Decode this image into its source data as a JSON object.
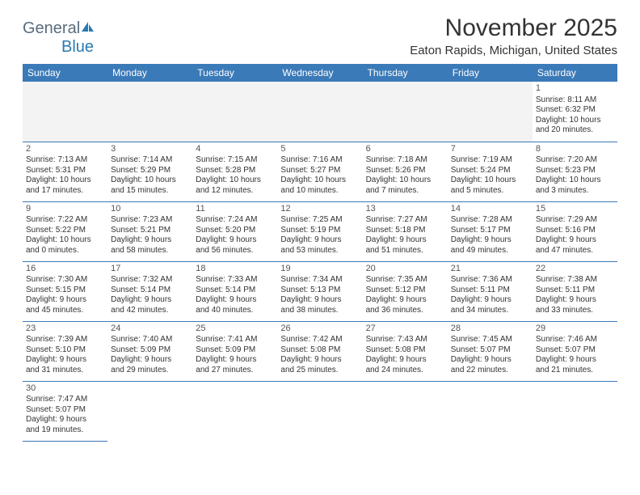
{
  "logo": {
    "general": "General",
    "blue": "Blue"
  },
  "title": "November 2025",
  "location": "Eaton Rapids, Michigan, United States",
  "colors": {
    "header_bg": "#3b7ab8",
    "header_text": "#ffffff",
    "border": "#3b7ab8",
    "empty_bg": "#f3f3f3",
    "text": "#333333",
    "logo_general": "#5a6c7d",
    "logo_blue": "#2a7ab0"
  },
  "day_names": [
    "Sunday",
    "Monday",
    "Tuesday",
    "Wednesday",
    "Thursday",
    "Friday",
    "Saturday"
  ],
  "weeks": [
    [
      {
        "empty": true
      },
      {
        "empty": true
      },
      {
        "empty": true
      },
      {
        "empty": true
      },
      {
        "empty": true
      },
      {
        "empty": true
      },
      {
        "n": "1",
        "sr": "Sunrise: 8:11 AM",
        "ss": "Sunset: 6:32 PM",
        "dl1": "Daylight: 10 hours",
        "dl2": "and 20 minutes."
      }
    ],
    [
      {
        "n": "2",
        "sr": "Sunrise: 7:13 AM",
        "ss": "Sunset: 5:31 PM",
        "dl1": "Daylight: 10 hours",
        "dl2": "and 17 minutes."
      },
      {
        "n": "3",
        "sr": "Sunrise: 7:14 AM",
        "ss": "Sunset: 5:29 PM",
        "dl1": "Daylight: 10 hours",
        "dl2": "and 15 minutes."
      },
      {
        "n": "4",
        "sr": "Sunrise: 7:15 AM",
        "ss": "Sunset: 5:28 PM",
        "dl1": "Daylight: 10 hours",
        "dl2": "and 12 minutes."
      },
      {
        "n": "5",
        "sr": "Sunrise: 7:16 AM",
        "ss": "Sunset: 5:27 PM",
        "dl1": "Daylight: 10 hours",
        "dl2": "and 10 minutes."
      },
      {
        "n": "6",
        "sr": "Sunrise: 7:18 AM",
        "ss": "Sunset: 5:26 PM",
        "dl1": "Daylight: 10 hours",
        "dl2": "and 7 minutes."
      },
      {
        "n": "7",
        "sr": "Sunrise: 7:19 AM",
        "ss": "Sunset: 5:24 PM",
        "dl1": "Daylight: 10 hours",
        "dl2": "and 5 minutes."
      },
      {
        "n": "8",
        "sr": "Sunrise: 7:20 AM",
        "ss": "Sunset: 5:23 PM",
        "dl1": "Daylight: 10 hours",
        "dl2": "and 3 minutes."
      }
    ],
    [
      {
        "n": "9",
        "sr": "Sunrise: 7:22 AM",
        "ss": "Sunset: 5:22 PM",
        "dl1": "Daylight: 10 hours",
        "dl2": "and 0 minutes."
      },
      {
        "n": "10",
        "sr": "Sunrise: 7:23 AM",
        "ss": "Sunset: 5:21 PM",
        "dl1": "Daylight: 9 hours",
        "dl2": "and 58 minutes."
      },
      {
        "n": "11",
        "sr": "Sunrise: 7:24 AM",
        "ss": "Sunset: 5:20 PM",
        "dl1": "Daylight: 9 hours",
        "dl2": "and 56 minutes."
      },
      {
        "n": "12",
        "sr": "Sunrise: 7:25 AM",
        "ss": "Sunset: 5:19 PM",
        "dl1": "Daylight: 9 hours",
        "dl2": "and 53 minutes."
      },
      {
        "n": "13",
        "sr": "Sunrise: 7:27 AM",
        "ss": "Sunset: 5:18 PM",
        "dl1": "Daylight: 9 hours",
        "dl2": "and 51 minutes."
      },
      {
        "n": "14",
        "sr": "Sunrise: 7:28 AM",
        "ss": "Sunset: 5:17 PM",
        "dl1": "Daylight: 9 hours",
        "dl2": "and 49 minutes."
      },
      {
        "n": "15",
        "sr": "Sunrise: 7:29 AM",
        "ss": "Sunset: 5:16 PM",
        "dl1": "Daylight: 9 hours",
        "dl2": "and 47 minutes."
      }
    ],
    [
      {
        "n": "16",
        "sr": "Sunrise: 7:30 AM",
        "ss": "Sunset: 5:15 PM",
        "dl1": "Daylight: 9 hours",
        "dl2": "and 45 minutes."
      },
      {
        "n": "17",
        "sr": "Sunrise: 7:32 AM",
        "ss": "Sunset: 5:14 PM",
        "dl1": "Daylight: 9 hours",
        "dl2": "and 42 minutes."
      },
      {
        "n": "18",
        "sr": "Sunrise: 7:33 AM",
        "ss": "Sunset: 5:14 PM",
        "dl1": "Daylight: 9 hours",
        "dl2": "and 40 minutes."
      },
      {
        "n": "19",
        "sr": "Sunrise: 7:34 AM",
        "ss": "Sunset: 5:13 PM",
        "dl1": "Daylight: 9 hours",
        "dl2": "and 38 minutes."
      },
      {
        "n": "20",
        "sr": "Sunrise: 7:35 AM",
        "ss": "Sunset: 5:12 PM",
        "dl1": "Daylight: 9 hours",
        "dl2": "and 36 minutes."
      },
      {
        "n": "21",
        "sr": "Sunrise: 7:36 AM",
        "ss": "Sunset: 5:11 PM",
        "dl1": "Daylight: 9 hours",
        "dl2": "and 34 minutes."
      },
      {
        "n": "22",
        "sr": "Sunrise: 7:38 AM",
        "ss": "Sunset: 5:11 PM",
        "dl1": "Daylight: 9 hours",
        "dl2": "and 33 minutes."
      }
    ],
    [
      {
        "n": "23",
        "sr": "Sunrise: 7:39 AM",
        "ss": "Sunset: 5:10 PM",
        "dl1": "Daylight: 9 hours",
        "dl2": "and 31 minutes."
      },
      {
        "n": "24",
        "sr": "Sunrise: 7:40 AM",
        "ss": "Sunset: 5:09 PM",
        "dl1": "Daylight: 9 hours",
        "dl2": "and 29 minutes."
      },
      {
        "n": "25",
        "sr": "Sunrise: 7:41 AM",
        "ss": "Sunset: 5:09 PM",
        "dl1": "Daylight: 9 hours",
        "dl2": "and 27 minutes."
      },
      {
        "n": "26",
        "sr": "Sunrise: 7:42 AM",
        "ss": "Sunset: 5:08 PM",
        "dl1": "Daylight: 9 hours",
        "dl2": "and 25 minutes."
      },
      {
        "n": "27",
        "sr": "Sunrise: 7:43 AM",
        "ss": "Sunset: 5:08 PM",
        "dl1": "Daylight: 9 hours",
        "dl2": "and 24 minutes."
      },
      {
        "n": "28",
        "sr": "Sunrise: 7:45 AM",
        "ss": "Sunset: 5:07 PM",
        "dl1": "Daylight: 9 hours",
        "dl2": "and 22 minutes."
      },
      {
        "n": "29",
        "sr": "Sunrise: 7:46 AM",
        "ss": "Sunset: 5:07 PM",
        "dl1": "Daylight: 9 hours",
        "dl2": "and 21 minutes."
      }
    ],
    [
      {
        "n": "30",
        "sr": "Sunrise: 7:47 AM",
        "ss": "Sunset: 5:07 PM",
        "dl1": "Daylight: 9 hours",
        "dl2": "and 19 minutes."
      },
      {
        "empty": true,
        "noborder": true
      },
      {
        "empty": true,
        "noborder": true
      },
      {
        "empty": true,
        "noborder": true
      },
      {
        "empty": true,
        "noborder": true
      },
      {
        "empty": true,
        "noborder": true
      },
      {
        "empty": true,
        "noborder": true
      }
    ]
  ]
}
